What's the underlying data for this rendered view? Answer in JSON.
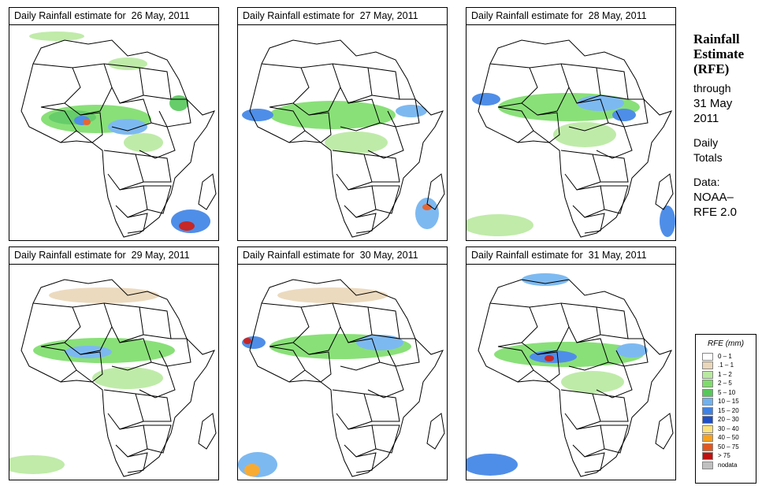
{
  "panels": [
    {
      "title": "Daily Rainfall estimate for  26 May, 2011"
    },
    {
      "title": "Daily Rainfall estimate for  27 May, 2011"
    },
    {
      "title": "Daily Rainfall estimate for  28 May, 2011"
    },
    {
      "title": "Daily Rainfall estimate for  29 May, 2011"
    },
    {
      "title": "Daily Rainfall estimate for  30 May, 2011"
    },
    {
      "title": "Daily Rainfall estimate for  31 May, 2011"
    }
  ],
  "side": {
    "heading1": "Rainfall",
    "heading2": "Estimate",
    "heading3": "(RFE)",
    "through": "through",
    "date1": "31 May",
    "date2": "2011",
    "daily": "Daily",
    "totals": "Totals",
    "data_label": "Data:",
    "source1": "NOAA–",
    "source2": "RFE 2.0"
  },
  "legend": {
    "title": "RFE (mm)",
    "items": [
      {
        "label": "0 – 1",
        "color": "#ffffff"
      },
      {
        "label": ".1 – 1",
        "color": "#ead6b8"
      },
      {
        "label": "1 – 2",
        "color": "#b9e9a0"
      },
      {
        "label": "2 – 5",
        "color": "#7ddd6a"
      },
      {
        "label": "5 – 10",
        "color": "#56c85a"
      },
      {
        "label": "10 – 15",
        "color": "#6fb2f0"
      },
      {
        "label": "15 – 20",
        "color": "#3c82e6"
      },
      {
        "label": "20 – 30",
        "color": "#1c4fc8"
      },
      {
        "label": "30 – 40",
        "color": "#fce27a"
      },
      {
        "label": "40 – 50",
        "color": "#f8a21c"
      },
      {
        "label": "50 – 75",
        "color": "#e5561c"
      },
      {
        "label": "> 75",
        "color": "#c01010"
      },
      {
        "label": "nodata",
        "color": "#c0c0c0"
      }
    ]
  }
}
